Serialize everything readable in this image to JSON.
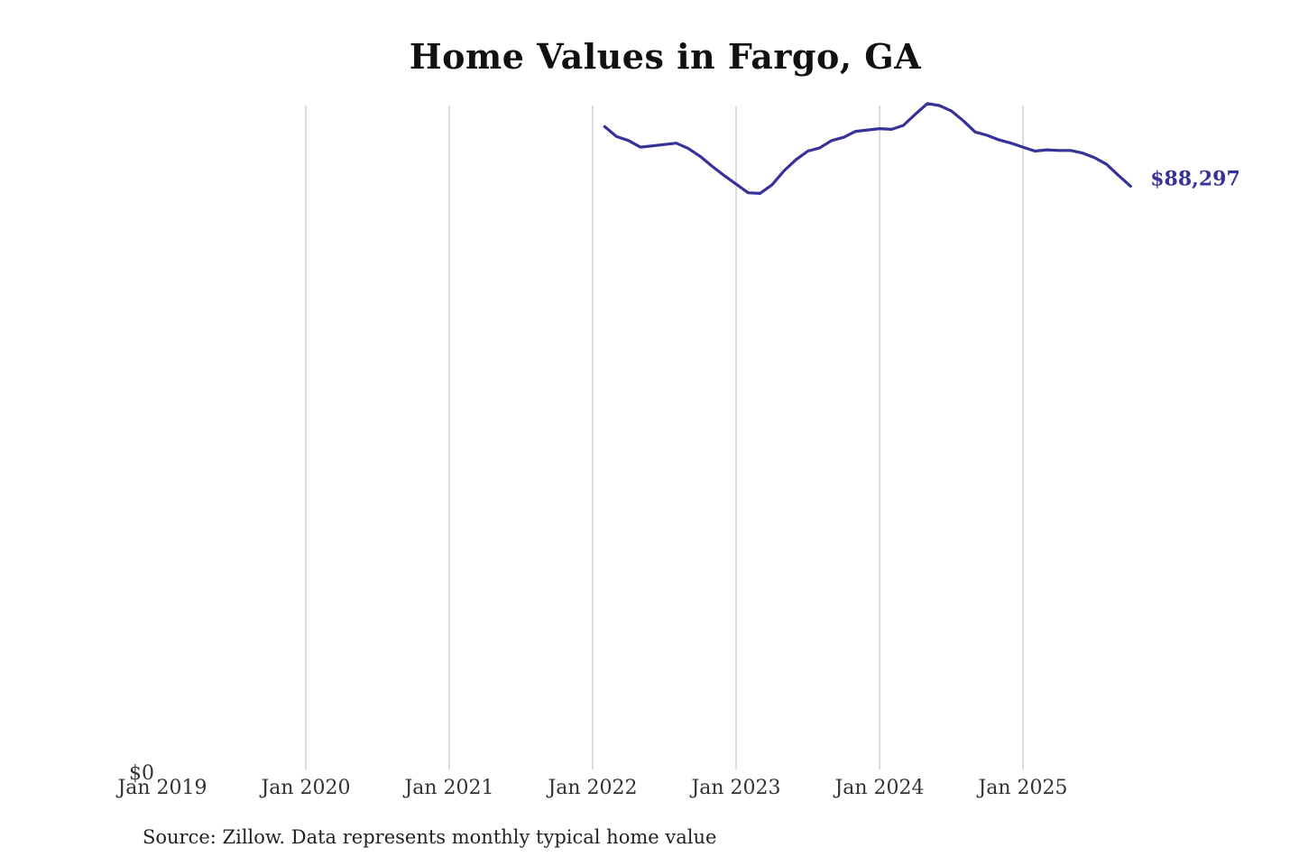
{
  "chart_data": {
    "type": "line",
    "title": "Home Values in Fargo, GA",
    "xlabel": "",
    "ylabel": "",
    "x_ticks": [
      "Jan 2019",
      "Jan 2020",
      "Jan 2021",
      "Jan 2022",
      "Jan 2023",
      "Jan 2024",
      "Jan 2025"
    ],
    "y_ticks": [
      "$0"
    ],
    "xlim": [
      "2019-01",
      "2025-12"
    ],
    "ylim": [
      0,
      100500
    ],
    "grid": "vertical",
    "line_color": "#36329a",
    "series": [
      {
        "x": [
          "2022-02",
          "2022-03",
          "2022-04",
          "2022-05",
          "2022-06",
          "2022-07",
          "2022-08",
          "2022-09",
          "2022-10",
          "2022-11",
          "2022-12",
          "2023-01",
          "2023-02",
          "2023-03",
          "2023-04",
          "2023-05",
          "2023-06",
          "2023-07",
          "2023-08",
          "2023-09",
          "2023-10",
          "2023-11",
          "2023-12",
          "2024-01",
          "2024-02",
          "2024-03",
          "2024-04",
          "2024-05",
          "2024-06",
          "2024-07",
          "2024-08",
          "2024-09",
          "2024-10",
          "2024-11",
          "2024-12",
          "2025-01",
          "2025-02",
          "2025-03",
          "2025-04",
          "2025-05",
          "2025-06",
          "2025-07",
          "2025-08",
          "2025-09",
          "2025-10"
        ],
        "values": [
          97300,
          95800,
          95200,
          94200,
          94400,
          94600,
          94800,
          94000,
          92800,
          91300,
          89900,
          88600,
          87300,
          87200,
          88500,
          90600,
          92300,
          93600,
          94100,
          95200,
          95700,
          96600,
          96800,
          97000,
          96900,
          97500,
          99200,
          100800,
          100500,
          99700,
          98200,
          96500,
          96000,
          95300,
          94800,
          94200,
          93600,
          93800,
          93700,
          93700,
          93300,
          92600,
          91600,
          89900,
          88297
        ]
      }
    ],
    "end_label": "$88,297"
  },
  "source_note": "Source: Zillow. Data represents monthly typical home value"
}
